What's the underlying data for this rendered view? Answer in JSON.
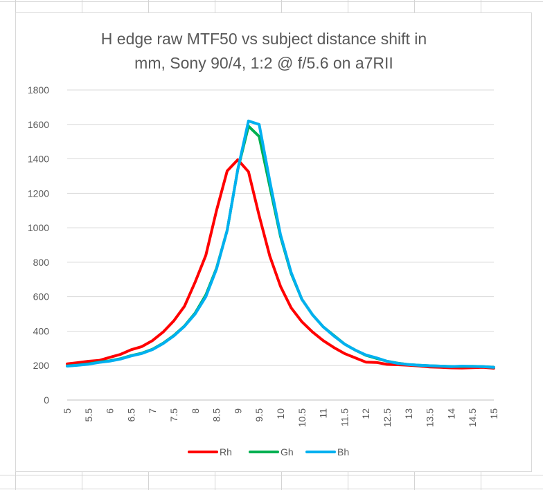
{
  "chart_data": {
    "type": "line",
    "title_lines": [
      "H edge raw MTF50 vs subject distance shift in",
      "mm, Sony 90/4, 1:2 @ f/5.6 on a7RII"
    ],
    "xlabel": "",
    "ylabel": "",
    "x_tick_labels": [
      "5",
      "5.5",
      "6",
      "6.5",
      "7",
      "7.5",
      "8",
      "8.5",
      "9",
      "9.5",
      "10",
      "10.5",
      "11",
      "11.5",
      "12",
      "12.5",
      "13",
      "13.5",
      "14",
      "14.5",
      "15"
    ],
    "y_tick_labels": [
      "0",
      "200",
      "400",
      "600",
      "800",
      "1000",
      "1200",
      "1400",
      "1600",
      "1800"
    ],
    "xlim": [
      5,
      15
    ],
    "ylim": [
      0,
      1800
    ],
    "y_step": 200,
    "gridlines": "horizontal",
    "legend_position": "bottom",
    "x": [
      5,
      5.25,
      5.5,
      5.75,
      6,
      6.25,
      6.5,
      6.75,
      7,
      7.25,
      7.5,
      7.75,
      8,
      8.25,
      8.5,
      8.75,
      9,
      9.25,
      9.5,
      9.75,
      10,
      10.25,
      10.5,
      10.75,
      11,
      11.25,
      11.5,
      11.75,
      12,
      12.25,
      12.5,
      12.75,
      13,
      13.25,
      13.5,
      13.75,
      14,
      14.25,
      14.5,
      14.75,
      15
    ],
    "series": [
      {
        "name": "Rh",
        "color": "#ff0000",
        "values": [
          210,
          217,
          225,
          230,
          248,
          265,
          292,
          310,
          345,
          395,
          460,
          545,
          685,
          840,
          1100,
          1330,
          1395,
          1325,
          1070,
          835,
          660,
          535,
          455,
          395,
          345,
          305,
          270,
          245,
          220,
          218,
          207,
          205,
          202,
          198,
          192,
          190,
          187,
          186,
          188,
          190,
          185
        ]
      },
      {
        "name": "Gh",
        "color": "#00b050",
        "values": [
          198,
          203,
          210,
          220,
          228,
          240,
          258,
          272,
          295,
          330,
          375,
          430,
          505,
          610,
          765,
          985,
          1340,
          1590,
          1530,
          1240,
          950,
          735,
          585,
          495,
          425,
          375,
          325,
          290,
          260,
          242,
          225,
          214,
          206,
          202,
          199,
          197,
          195,
          195,
          196,
          194,
          190
        ]
      },
      {
        "name": "Bh",
        "color": "#00b0f0",
        "values": [
          197,
          202,
          208,
          218,
          226,
          238,
          256,
          270,
          293,
          328,
          372,
          428,
          500,
          600,
          760,
          985,
          1340,
          1620,
          1600,
          1270,
          960,
          740,
          585,
          495,
          425,
          372,
          325,
          290,
          262,
          245,
          225,
          213,
          206,
          202,
          199,
          197,
          194,
          197,
          195,
          194,
          190
        ]
      }
    ]
  }
}
